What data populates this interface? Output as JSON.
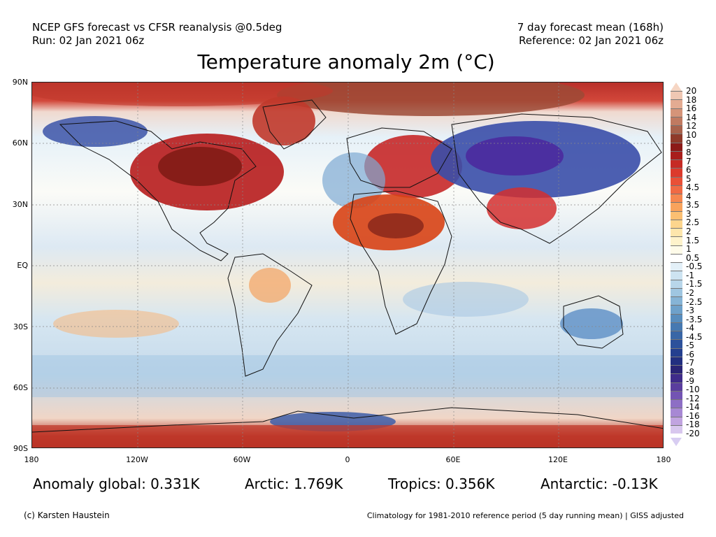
{
  "header": {
    "left_line1": "NCEP GFS forecast vs CFSR reanalysis @0.5deg",
    "left_line2": "Run: 02 Jan 2021 06z",
    "right_line1": "7 day forecast mean (168h)",
    "right_line2": "Reference: 02 Jan 2021 06z"
  },
  "title": "Temperature anomaly 2m (°C)",
  "axes": {
    "y_labels": [
      "90N",
      "60N",
      "30N",
      "EQ",
      "30S",
      "60S",
      "90S"
    ],
    "x_labels": [
      "180",
      "120W",
      "60W",
      "0",
      "60E",
      "120E",
      "180"
    ]
  },
  "colorbar": {
    "ticks": [
      "20",
      "18",
      "16",
      "14",
      "12",
      "10",
      "9",
      "8",
      "7",
      "6",
      "5",
      "4.5",
      "4",
      "3.5",
      "3",
      "2.5",
      "2",
      "1.5",
      "1",
      "0.5",
      "-0.5",
      "-1",
      "-1.5",
      "-2",
      "-2.5",
      "-3",
      "-3.5",
      "-4",
      "-4.5",
      "-5",
      "-6",
      "-7",
      "-8",
      "-9",
      "-10",
      "-12",
      "-14",
      "-16",
      "-18",
      "-20"
    ],
    "colors": [
      "#efc7b3",
      "#e3ab92",
      "#d59479",
      "#c07a61",
      "#a8624c",
      "#8f3a2a",
      "#8c1a18",
      "#a81e1c",
      "#c62a24",
      "#dc3a2c",
      "#e95037",
      "#f06a44",
      "#f6874f",
      "#f8a35c",
      "#fbbf72",
      "#fcd58d",
      "#fde6ac",
      "#fef3cb",
      "#fefbe9",
      "#ffffff",
      "#e3f0f8",
      "#cde3f1",
      "#b8d6ea",
      "#9fc6e1",
      "#86b4d6",
      "#6ea1ca",
      "#588dbd",
      "#4679b1",
      "#3966a6",
      "#2d519b",
      "#243f8f",
      "#222f80",
      "#2a2475",
      "#3f2b8a",
      "#5a3d9e",
      "#7354b3",
      "#8d6ec5",
      "#a788d4",
      "#c1a4e0",
      "#d8c7ee"
    ]
  },
  "stats": {
    "global": "Anomaly global: 0.331K",
    "arctic": "Arctic: 1.769K",
    "tropics": "Tropics: 0.356K",
    "antarctic": "Antarctic: -0.13K"
  },
  "footer": {
    "copyright": "(c) Karsten Haustein",
    "climatology": "Climatology for 1981-2010 reference period (5 day running mean) | GISS adjusted"
  }
}
